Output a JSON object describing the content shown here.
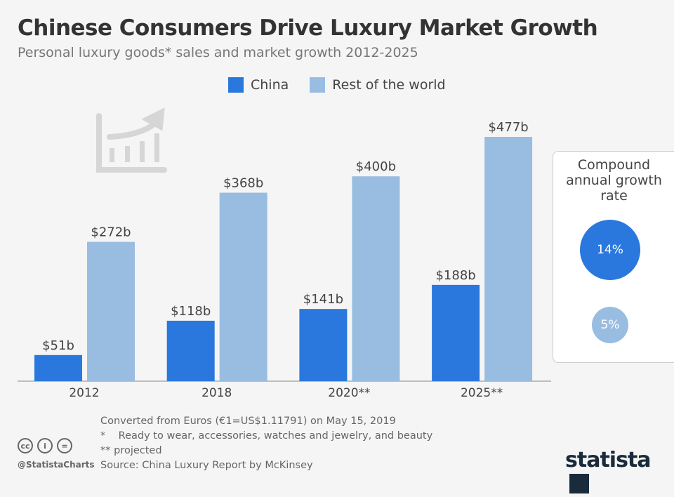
{
  "title": "Chinese Consumers Drive Luxury Market Growth",
  "subtitle": "Personal luxury goods* sales and market growth 2012-2025",
  "colors": {
    "china": "#2a78de",
    "rest": "#99bde1"
  },
  "chart_data": {
    "type": "bar",
    "categories": [
      "2012",
      "2018",
      "2020**",
      "2025**"
    ],
    "series": [
      {
        "name": "China",
        "values": [
          51,
          118,
          141,
          188
        ],
        "labels": [
          "$51b",
          "$118b",
          "$141b",
          "$188b"
        ]
      },
      {
        "name": "Rest of the world",
        "values": [
          272,
          368,
          400,
          477
        ],
        "labels": [
          "$272b",
          "$368b",
          "$400b",
          "$477b"
        ]
      }
    ],
    "legend": "top",
    "grid": false,
    "ylim": [
      0,
      477
    ]
  },
  "cagr": {
    "title": "Compound annual growth rate",
    "china": "14%",
    "rest": "5%"
  },
  "footer": {
    "note1": "Converted from Euros (€1=US$1.11791) on May 15, 2019",
    "note2": "*    Ready to wear, accessories, watches and jewelry, and beauty",
    "note3": "** projected",
    "source": "Source: China Luxury Report by McKinsey",
    "handle": "@StatistaCharts",
    "logo": "statista"
  }
}
